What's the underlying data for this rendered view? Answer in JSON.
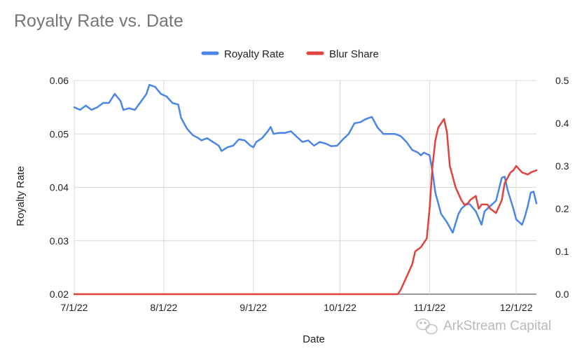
{
  "chart_data": {
    "type": "line",
    "title": "Royalty Rate vs. Date",
    "xlabel": "Date",
    "ylabel": "Royalty Rate",
    "y2label": "",
    "x_start": "2022-07-01",
    "x_end": "2022-12-08",
    "x_ticks": [
      {
        "date": "2022-07-01",
        "label": "7/1/22"
      },
      {
        "date": "2022-08-01",
        "label": "8/1/22"
      },
      {
        "date": "2022-09-01",
        "label": "9/1/22"
      },
      {
        "date": "2022-10-01",
        "label": "10/1/22"
      },
      {
        "date": "2022-11-01",
        "label": "11/1/22"
      },
      {
        "date": "2022-12-01",
        "label": "12/1/22"
      }
    ],
    "ylim": [
      0.02,
      0.06
    ],
    "y_ticks": [
      "0.02",
      "0.03",
      "0.04",
      "0.05",
      "0.06"
    ],
    "y2lim": [
      0.0,
      0.5
    ],
    "y2_ticks": [
      "0.0",
      "0.1",
      "0.2",
      "0.3",
      "0.4",
      "0.5"
    ],
    "grid": true,
    "legend_position": "top",
    "series": [
      {
        "name": "Royalty Rate",
        "axis": "left",
        "color": "#4a86e8",
        "points": [
          [
            "2022-07-01",
            0.055
          ],
          [
            "2022-07-03",
            0.0545
          ],
          [
            "2022-07-05",
            0.0553
          ],
          [
            "2022-07-07",
            0.0545
          ],
          [
            "2022-07-09",
            0.055
          ],
          [
            "2022-07-11",
            0.0558
          ],
          [
            "2022-07-13",
            0.0558
          ],
          [
            "2022-07-15",
            0.0575
          ],
          [
            "2022-07-17",
            0.0562
          ],
          [
            "2022-07-18",
            0.0545
          ],
          [
            "2022-07-20",
            0.0548
          ],
          [
            "2022-07-22",
            0.0545
          ],
          [
            "2022-07-24",
            0.056
          ],
          [
            "2022-07-26",
            0.0575
          ],
          [
            "2022-07-27",
            0.0592
          ],
          [
            "2022-07-29",
            0.0588
          ],
          [
            "2022-07-31",
            0.0575
          ],
          [
            "2022-08-02",
            0.057
          ],
          [
            "2022-08-04",
            0.0558
          ],
          [
            "2022-08-06",
            0.0555
          ],
          [
            "2022-08-07",
            0.053
          ],
          [
            "2022-08-09",
            0.051
          ],
          [
            "2022-08-11",
            0.0498
          ],
          [
            "2022-08-13",
            0.0492
          ],
          [
            "2022-08-14",
            0.0488
          ],
          [
            "2022-08-16",
            0.0492
          ],
          [
            "2022-08-18",
            0.0485
          ],
          [
            "2022-08-20",
            0.0478
          ],
          [
            "2022-08-21",
            0.0468
          ],
          [
            "2022-08-23",
            0.0475
          ],
          [
            "2022-08-25",
            0.0478
          ],
          [
            "2022-08-27",
            0.049
          ],
          [
            "2022-08-29",
            0.0488
          ],
          [
            "2022-08-31",
            0.0478
          ],
          [
            "2022-09-01",
            0.0475
          ],
          [
            "2022-09-02",
            0.0485
          ],
          [
            "2022-09-04",
            0.0492
          ],
          [
            "2022-09-06",
            0.0505
          ],
          [
            "2022-09-07",
            0.0513
          ],
          [
            "2022-09-08",
            0.05
          ],
          [
            "2022-09-10",
            0.0502
          ],
          [
            "2022-09-12",
            0.0502
          ],
          [
            "2022-09-14",
            0.0505
          ],
          [
            "2022-09-16",
            0.0495
          ],
          [
            "2022-09-18",
            0.0485
          ],
          [
            "2022-09-20",
            0.0488
          ],
          [
            "2022-09-22",
            0.0478
          ],
          [
            "2022-09-24",
            0.0485
          ],
          [
            "2022-09-26",
            0.0482
          ],
          [
            "2022-09-28",
            0.0477
          ],
          [
            "2022-09-30",
            0.0478
          ],
          [
            "2022-10-02",
            0.049
          ],
          [
            "2022-10-04",
            0.05
          ],
          [
            "2022-10-06",
            0.052
          ],
          [
            "2022-10-08",
            0.0522
          ],
          [
            "2022-10-10",
            0.0528
          ],
          [
            "2022-10-12",
            0.0532
          ],
          [
            "2022-10-14",
            0.0512
          ],
          [
            "2022-10-16",
            0.05
          ],
          [
            "2022-10-18",
            0.05
          ],
          [
            "2022-10-20",
            0.05
          ],
          [
            "2022-10-22",
            0.0496
          ],
          [
            "2022-10-24",
            0.0485
          ],
          [
            "2022-10-26",
            0.047
          ],
          [
            "2022-10-28",
            0.0465
          ],
          [
            "2022-10-29",
            0.046
          ],
          [
            "2022-10-30",
            0.0465
          ],
          [
            "2022-11-01",
            0.046
          ],
          [
            "2022-11-02",
            0.043
          ],
          [
            "2022-11-03",
            0.039
          ],
          [
            "2022-11-05",
            0.035
          ],
          [
            "2022-11-07",
            0.0335
          ],
          [
            "2022-11-09",
            0.0315
          ],
          [
            "2022-11-11",
            0.035
          ],
          [
            "2022-11-12",
            0.036
          ],
          [
            "2022-11-14",
            0.037
          ],
          [
            "2022-11-15",
            0.0368
          ],
          [
            "2022-11-17",
            0.0355
          ],
          [
            "2022-11-19",
            0.033
          ],
          [
            "2022-11-20",
            0.0355
          ],
          [
            "2022-11-22",
            0.0365
          ],
          [
            "2022-11-24",
            0.0375
          ],
          [
            "2022-11-26",
            0.0418
          ],
          [
            "2022-11-27",
            0.042
          ],
          [
            "2022-11-28",
            0.0395
          ],
          [
            "2022-11-30",
            0.036
          ],
          [
            "2022-12-01",
            0.034
          ],
          [
            "2022-12-02",
            0.0335
          ],
          [
            "2022-12-03",
            0.033
          ],
          [
            "2022-12-04",
            0.0345
          ],
          [
            "2022-12-05",
            0.0365
          ],
          [
            "2022-12-06",
            0.039
          ],
          [
            "2022-12-07",
            0.0392
          ],
          [
            "2022-12-08",
            0.037
          ]
        ]
      },
      {
        "name": "Blur Share",
        "axis": "right",
        "color": "#e0433d",
        "points": [
          [
            "2022-07-01",
            0.0
          ],
          [
            "2022-10-21",
            0.0
          ],
          [
            "2022-10-22",
            0.01
          ],
          [
            "2022-10-24",
            0.04
          ],
          [
            "2022-10-26",
            0.07
          ],
          [
            "2022-10-27",
            0.1
          ],
          [
            "2022-10-29",
            0.11
          ],
          [
            "2022-10-30",
            0.12
          ],
          [
            "2022-10-31",
            0.13
          ],
          [
            "2022-11-01",
            0.2
          ],
          [
            "2022-11-02",
            0.3
          ],
          [
            "2022-11-03",
            0.36
          ],
          [
            "2022-11-04",
            0.39
          ],
          [
            "2022-11-05",
            0.4
          ],
          [
            "2022-11-06",
            0.41
          ],
          [
            "2022-11-07",
            0.38
          ],
          [
            "2022-11-08",
            0.3
          ],
          [
            "2022-11-10",
            0.25
          ],
          [
            "2022-11-12",
            0.22
          ],
          [
            "2022-11-13",
            0.21
          ],
          [
            "2022-11-14",
            0.21
          ],
          [
            "2022-11-15",
            0.22
          ],
          [
            "2022-11-17",
            0.23
          ],
          [
            "2022-11-18",
            0.2
          ],
          [
            "2022-11-19",
            0.21
          ],
          [
            "2022-11-21",
            0.21
          ],
          [
            "2022-11-22",
            0.2
          ],
          [
            "2022-11-24",
            0.19
          ],
          [
            "2022-11-26",
            0.22
          ],
          [
            "2022-11-27",
            0.26
          ],
          [
            "2022-11-29",
            0.285
          ],
          [
            "2022-11-30",
            0.29
          ],
          [
            "2022-12-01",
            0.3
          ],
          [
            "2022-12-03",
            0.285
          ],
          [
            "2022-12-05",
            0.28
          ],
          [
            "2022-12-06",
            0.285
          ],
          [
            "2022-12-08",
            0.29
          ]
        ]
      }
    ]
  },
  "watermark": {
    "text": "ArkStream Capital",
    "icon": "wechat-icon"
  }
}
